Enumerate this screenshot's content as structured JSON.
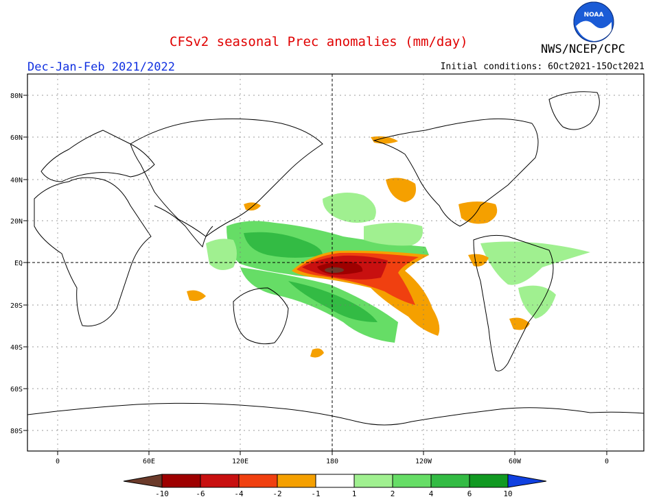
{
  "header": {
    "title": "CFSv2 seasonal Prec anomalies (mm/day)",
    "season": "Dec-Jan-Feb 2021/2022",
    "initial_conditions": "Initial conditions: 6Oct2021-15Oct2021",
    "agency": "NWS/NCEP/CPC",
    "logo_text": "NOAA"
  },
  "map": {
    "lat_labels": [
      "80N",
      "60N",
      "40N",
      "20N",
      "EQ",
      "20S",
      "40S",
      "60S",
      "80S"
    ],
    "lon_labels": [
      "0",
      "60E",
      "120E",
      "180",
      "120W",
      "60W",
      "0"
    ]
  },
  "legend": {
    "ticks": [
      "-10",
      "-6",
      "-4",
      "-2",
      "-1",
      "1",
      "2",
      "4",
      "6",
      "10"
    ],
    "colors": [
      "#6b3a2a",
      "#9e0000",
      "#c81010",
      "#f04010",
      "#f5a000",
      "#ffffff",
      "#a0f090",
      "#66dd66",
      "#33bb44",
      "#119922",
      "#1040e0"
    ]
  }
}
